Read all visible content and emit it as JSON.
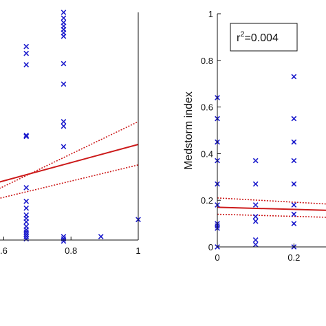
{
  "colors": {
    "marker": "#1a1acc",
    "fit": "#cc1a1a",
    "axis": "#111111"
  },
  "chart_data": [
    {
      "type": "scatter",
      "title": "",
      "xlabel": "",
      "ylabel": "",
      "xlim": [
        0.55,
        1.0
      ],
      "ylim": [
        0,
        1
      ],
      "xticks": [
        0.6,
        0.8,
        1.0
      ],
      "xtick_labels": [
        ".6",
        "0.8",
        "1"
      ],
      "markers": "x",
      "points": [
        [
          0.667,
          0.85
        ],
        [
          0.667,
          0.82
        ],
        [
          0.667,
          0.77
        ],
        [
          0.667,
          0.46
        ],
        [
          0.667,
          0.455
        ],
        [
          0.667,
          0.23
        ],
        [
          0.667,
          0.17
        ],
        [
          0.667,
          0.14
        ],
        [
          0.667,
          0.11
        ],
        [
          0.667,
          0.095
        ],
        [
          0.667,
          0.08
        ],
        [
          0.667,
          0.06
        ],
        [
          0.667,
          0.045
        ],
        [
          0.667,
          0.035
        ],
        [
          0.667,
          0.025
        ],
        [
          0.667,
          0.015
        ],
        [
          0.667,
          0.005
        ],
        [
          0.778,
          1.0
        ],
        [
          0.778,
          0.975
        ],
        [
          0.778,
          0.955
        ],
        [
          0.778,
          0.94
        ],
        [
          0.778,
          0.925
        ],
        [
          0.778,
          0.91
        ],
        [
          0.778,
          0.895
        ],
        [
          0.778,
          0.775
        ],
        [
          0.778,
          0.685
        ],
        [
          0.778,
          0.52
        ],
        [
          0.778,
          0.5
        ],
        [
          0.778,
          0.41
        ],
        [
          0.778,
          0.015
        ],
        [
          0.778,
          0.005
        ],
        [
          0.778,
          -0.005
        ],
        [
          0.889,
          0.015
        ],
        [
          1.0,
          0.09
        ]
      ],
      "fit_line": {
        "x": [
          0.55,
          1.0
        ],
        "y": [
          0.24,
          0.42
        ]
      },
      "ci_upper": {
        "x": [
          0.55,
          1.0
        ],
        "y": [
          0.2,
          0.52
        ]
      },
      "ci_lower": {
        "x": [
          0.55,
          1.0
        ],
        "y": [
          0.17,
          0.33
        ]
      }
    },
    {
      "type": "scatter",
      "title": "",
      "xlabel": "",
      "ylabel": "Medstorm index",
      "xlim": [
        0,
        0.44
      ],
      "ylim": [
        0,
        1
      ],
      "xticks": [
        0,
        0.2
      ],
      "xtick_labels": [
        "0",
        "0.2"
      ],
      "yticks": [
        0,
        0.2,
        0.4,
        0.6,
        0.8,
        1
      ],
      "ytick_labels": [
        "0",
        "0.2",
        "0.4",
        "0.6",
        "0.8",
        "1"
      ],
      "annotation": {
        "prefix": "r",
        "superscript": "2",
        "suffix": "=0.004"
      },
      "markers": "x",
      "points": [
        [
          0.0,
          0.64
        ],
        [
          0.0,
          0.55
        ],
        [
          0.0,
          0.45
        ],
        [
          0.0,
          0.37
        ],
        [
          0.0,
          0.27
        ],
        [
          0.0,
          0.18
        ],
        [
          0.0,
          0.1
        ],
        [
          0.0,
          0.09
        ],
        [
          0.0,
          0.08
        ],
        [
          0.0,
          0.0
        ],
        [
          0.1,
          0.37
        ],
        [
          0.1,
          0.27
        ],
        [
          0.1,
          0.18
        ],
        [
          0.1,
          0.13
        ],
        [
          0.1,
          0.11
        ],
        [
          0.1,
          0.03
        ],
        [
          0.1,
          0.01
        ],
        [
          0.2,
          0.73
        ],
        [
          0.2,
          0.55
        ],
        [
          0.2,
          0.45
        ],
        [
          0.2,
          0.37
        ],
        [
          0.2,
          0.27
        ],
        [
          0.2,
          0.18
        ],
        [
          0.2,
          0.14
        ],
        [
          0.2,
          0.1
        ],
        [
          0.2,
          0.0
        ]
      ],
      "fit_line": {
        "x": [
          0,
          0.44
        ],
        "y": [
          0.17,
          0.15
        ]
      },
      "ci_upper": {
        "x": [
          0,
          0.44
        ],
        "y": [
          0.21,
          0.17
        ]
      },
      "ci_lower": {
        "x": [
          0,
          0.44
        ],
        "y": [
          0.14,
          0.12
        ]
      }
    }
  ]
}
